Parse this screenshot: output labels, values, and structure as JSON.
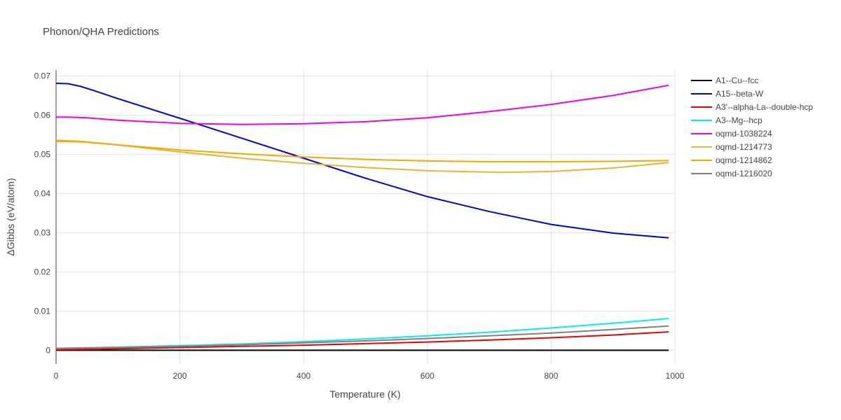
{
  "chart_data": {
    "type": "line",
    "title": "Phonon/QHA Predictions",
    "xlabel": "Temperature (K)",
    "ylabel": "ΔGibbs (eV/atom)",
    "xlim": [
      0,
      1000
    ],
    "ylim": [
      -0.0035,
      0.0715
    ],
    "xticks": [
      0,
      200,
      400,
      600,
      800,
      1000
    ],
    "xtick_labels": [
      "0",
      "200",
      "400",
      "600",
      "800",
      "1000"
    ],
    "yticks": [
      0,
      0.01,
      0.02,
      0.03,
      0.04,
      0.05,
      0.06,
      0.07
    ],
    "ytick_labels": [
      "0",
      "0.01",
      "0.02",
      "0.03",
      "0.04",
      "0.05",
      "0.06",
      "0.07"
    ],
    "grid": true,
    "legend_position": "right",
    "series": [
      {
        "name": "A1--Cu--fcc",
        "color": "#000000",
        "x": [
          0,
          990
        ],
        "y": [
          0,
          0
        ]
      },
      {
        "name": "A15--beta-W",
        "color": "#0000dd",
        "x": [
          0,
          20,
          40,
          60,
          100,
          200,
          300,
          400,
          500,
          600,
          700,
          800,
          900,
          990
        ],
        "y": [
          0.0681,
          0.068,
          0.0673,
          0.0663,
          0.0642,
          0.0592,
          0.0541,
          0.049,
          0.0439,
          0.0392,
          0.0354,
          0.0321,
          0.0299,
          0.0287
        ]
      },
      {
        "name": "A3'--alpha-La--double-hcp",
        "color": "#ee0000",
        "x": [
          0,
          100,
          200,
          300,
          400,
          500,
          600,
          700,
          800,
          900,
          990
        ],
        "y": [
          0.0001,
          0.0004,
          0.0007,
          0.001,
          0.0013,
          0.0017,
          0.0021,
          0.0026,
          0.0032,
          0.0039,
          0.0047
        ]
      },
      {
        "name": "A3--Mg--hcp",
        "color": "#00eeee",
        "x": [
          0,
          100,
          200,
          300,
          400,
          500,
          600,
          700,
          800,
          900,
          990
        ],
        "y": [
          0.0005,
          0.0008,
          0.0012,
          0.0016,
          0.0022,
          0.0029,
          0.0037,
          0.0046,
          0.0057,
          0.0069,
          0.0081
        ]
      },
      {
        "name": "oqmd-1038224",
        "color": "#ee00ee",
        "x": [
          0,
          20,
          50,
          100,
          200,
          300,
          400,
          500,
          600,
          700,
          800,
          900,
          990
        ],
        "y": [
          0.0595,
          0.0595,
          0.0593,
          0.0587,
          0.0579,
          0.0576,
          0.0578,
          0.0583,
          0.0593,
          0.0609,
          0.0627,
          0.065,
          0.0676
        ]
      },
      {
        "name": "oqmd-1214773",
        "color": "#ebb52a",
        "x": [
          0,
          40,
          100,
          200,
          300,
          400,
          500,
          600,
          720,
          800,
          900,
          990
        ],
        "y": [
          0.0536,
          0.0533,
          0.0524,
          0.0506,
          0.049,
          0.0477,
          0.0466,
          0.0458,
          0.0454,
          0.0456,
          0.0465,
          0.0479
        ]
      },
      {
        "name": "oqmd-1214862",
        "color": "#f5a800",
        "x": [
          0,
          40,
          100,
          200,
          300,
          400,
          500,
          600,
          700,
          800,
          900,
          990
        ],
        "y": [
          0.0533,
          0.0532,
          0.0524,
          0.0511,
          0.0501,
          0.0493,
          0.0487,
          0.0483,
          0.0481,
          0.0481,
          0.0482,
          0.0484
        ]
      },
      {
        "name": "oqmd-1216020",
        "color": "#808080",
        "x": [
          0,
          100,
          200,
          300,
          400,
          500,
          600,
          700,
          800,
          900,
          990
        ],
        "y": [
          0.0005,
          0.0007,
          0.001,
          0.0014,
          0.0019,
          0.0024,
          0.003,
          0.0037,
          0.0044,
          0.0053,
          0.0062
        ]
      }
    ]
  }
}
